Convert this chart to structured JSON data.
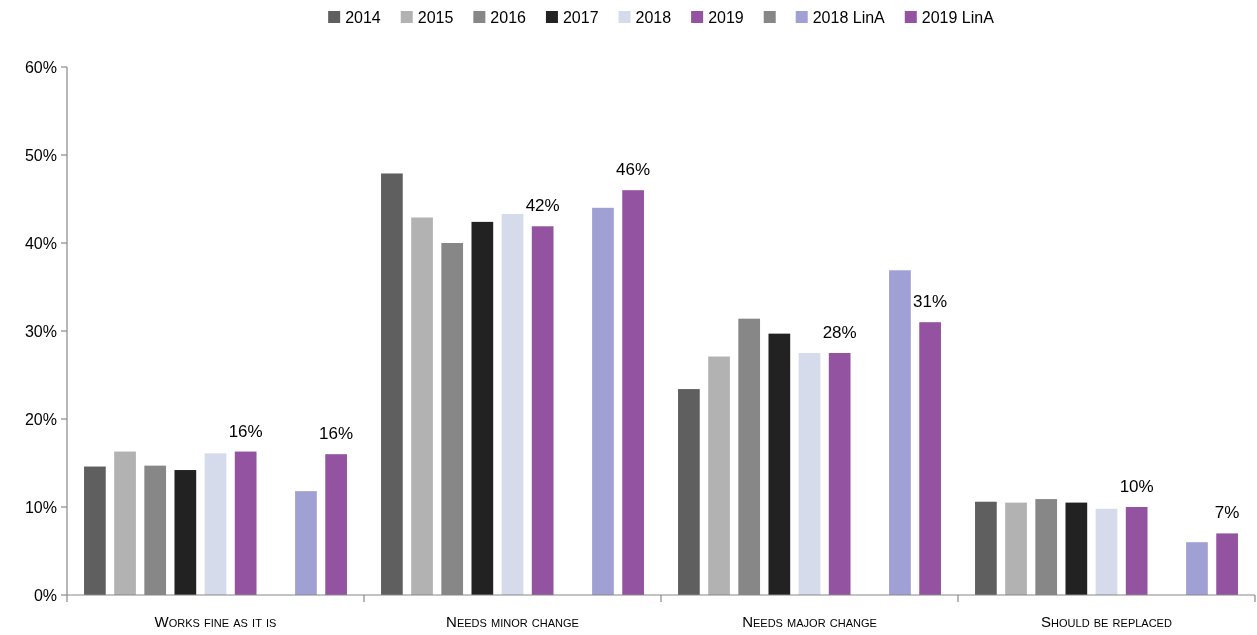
{
  "chart_data": {
    "type": "bar",
    "categories": [
      "Works fine as it is",
      "Needs minor change",
      "Needs major change",
      "Should be replaced"
    ],
    "series": [
      {
        "name": "2014",
        "color": "#5f5f5f",
        "values": [
          14.6,
          47.9,
          23.4,
          10.6
        ]
      },
      {
        "name": "2015",
        "color": "#b2b2b2",
        "values": [
          16.3,
          42.9,
          27.1,
          10.5
        ]
      },
      {
        "name": "2016",
        "color": "#878787",
        "values": [
          14.7,
          40.0,
          31.4,
          10.9
        ]
      },
      {
        "name": "2017",
        "color": "#222222",
        "values": [
          14.2,
          42.4,
          29.7,
          10.5
        ]
      },
      {
        "name": "2018",
        "color": "#d6dbeb",
        "values": [
          16.1,
          43.3,
          27.5,
          9.8
        ]
      },
      {
        "name": "2019",
        "color": "#9453a0",
        "values": [
          16.3,
          41.9,
          27.5,
          10.0
        ],
        "value_labels": [
          "16%",
          "42%",
          "28%",
          "10%"
        ]
      },
      {
        "color": "#878787",
        "values": [
          null,
          null,
          null,
          null
        ]
      },
      {
        "name": "2018 LinA",
        "color": "#a0a0d4",
        "values": [
          11.8,
          44.0,
          36.9,
          6.0
        ]
      },
      {
        "name": "2019 LinA",
        "color": "#9453a0",
        "values": [
          16.0,
          46.0,
          31.0,
          7.0
        ],
        "value_labels": [
          "16%",
          "46%",
          "31%",
          "7%"
        ]
      }
    ],
    "ylim": [
      0,
      60
    ],
    "yticks": [
      {
        "value": 0,
        "label": "0%"
      },
      {
        "value": 10,
        "label": "10%"
      },
      {
        "value": 20,
        "label": "20%"
      },
      {
        "value": 30,
        "label": "30%"
      },
      {
        "value": 40,
        "label": "40%"
      },
      {
        "value": 50,
        "label": "50%"
      },
      {
        "value": 60,
        "label": "60%"
      }
    ],
    "legend": "top"
  }
}
